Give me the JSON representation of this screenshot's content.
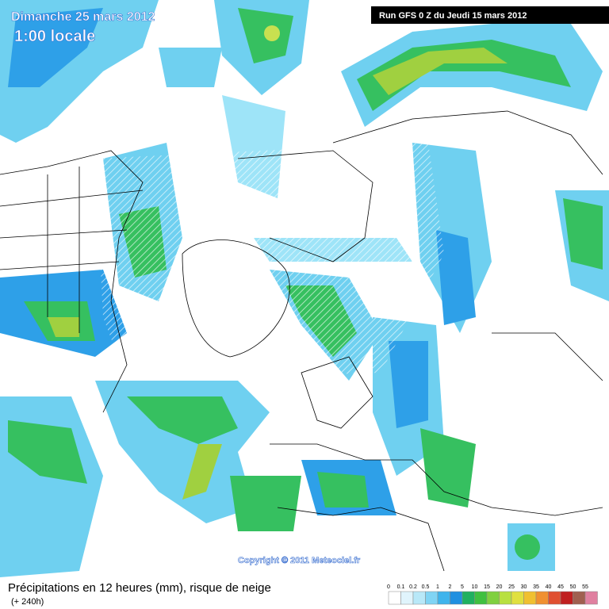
{
  "header": {
    "date": "Dimanche 25 mars 2012",
    "time": "1:00 locale",
    "run": "Run GFS 0 Z du Jeudi 15 mars 2012"
  },
  "map": {
    "copyright": "Copyright © 2011 Meteociel.fr"
  },
  "footer": {
    "title": "Précipitations en 12 heures (mm), risque de neige",
    "lead": "(+ 240h)",
    "legend": [
      "0",
      "0.1",
      "0.2",
      "0.5",
      "1",
      "2",
      "5",
      "10",
      "15",
      "20",
      "25",
      "30",
      "35",
      "40",
      "45",
      "50",
      "55"
    ]
  }
}
